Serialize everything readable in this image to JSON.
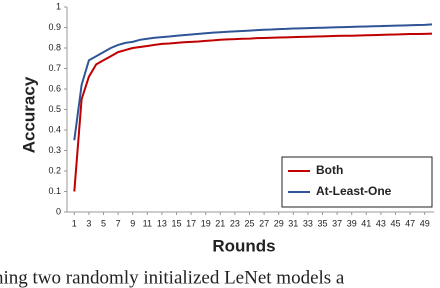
{
  "chart_data": {
    "type": "line",
    "x_label": "Rounds",
    "y_label": "Accuracy",
    "x": [
      1,
      2,
      3,
      4,
      5,
      6,
      7,
      8,
      9,
      10,
      11,
      12,
      13,
      14,
      15,
      16,
      17,
      18,
      19,
      20,
      21,
      22,
      23,
      24,
      25,
      26,
      27,
      28,
      29,
      30,
      31,
      32,
      33,
      34,
      35,
      36,
      37,
      38,
      39,
      40,
      41,
      42,
      43,
      44,
      45,
      46,
      47,
      48,
      49,
      50
    ],
    "series": [
      {
        "name": "Both",
        "color": "#c00000",
        "values": [
          0.1,
          0.55,
          0.66,
          0.72,
          0.74,
          0.76,
          0.78,
          0.79,
          0.8,
          0.805,
          0.81,
          0.815,
          0.82,
          0.822,
          0.825,
          0.828,
          0.83,
          0.832,
          0.835,
          0.837,
          0.84,
          0.842,
          0.843,
          0.845,
          0.846,
          0.848,
          0.849,
          0.85,
          0.851,
          0.852,
          0.853,
          0.854,
          0.855,
          0.856,
          0.857,
          0.858,
          0.859,
          0.86,
          0.86,
          0.861,
          0.862,
          0.863,
          0.864,
          0.865,
          0.866,
          0.867,
          0.868,
          0.868,
          0.869,
          0.87
        ]
      },
      {
        "name": "At-Least-One",
        "color": "#2f5597",
        "values": [
          0.35,
          0.62,
          0.74,
          0.76,
          0.78,
          0.8,
          0.815,
          0.825,
          0.83,
          0.84,
          0.845,
          0.85,
          0.853,
          0.856,
          0.86,
          0.863,
          0.866,
          0.869,
          0.872,
          0.875,
          0.877,
          0.879,
          0.881,
          0.883,
          0.885,
          0.887,
          0.889,
          0.89,
          0.892,
          0.893,
          0.895,
          0.896,
          0.897,
          0.898,
          0.899,
          0.9,
          0.901,
          0.902,
          0.903,
          0.904,
          0.905,
          0.906,
          0.907,
          0.908,
          0.909,
          0.91,
          0.911,
          0.912,
          0.913,
          0.915
        ]
      }
    ],
    "xlim": [
      0,
      50
    ],
    "xticks": [
      1,
      3,
      5,
      7,
      9,
      11,
      13,
      15,
      17,
      19,
      21,
      23,
      25,
      27,
      29,
      31,
      33,
      35,
      37,
      39,
      41,
      43,
      45,
      47,
      49
    ],
    "ylim": [
      0,
      1
    ],
    "yticks": [
      0,
      0.1,
      0.2,
      0.3,
      0.4,
      0.5,
      0.6,
      0.7,
      0.8,
      0.9,
      1
    ],
    "legend": "lower right",
    "caption": "ning two randomly initialized LeNet models a"
  }
}
